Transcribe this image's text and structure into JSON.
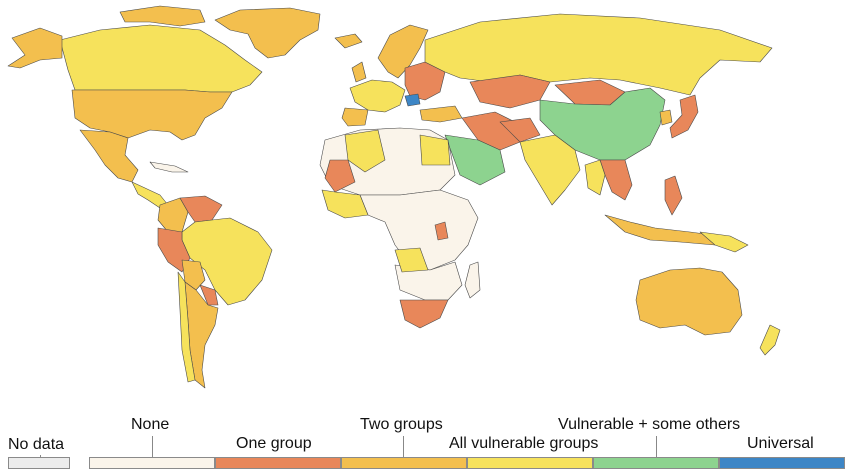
{
  "legend": {
    "no_data": "No data",
    "categories": [
      {
        "label": "None",
        "color": "#faf4ea"
      },
      {
        "label": "One group",
        "color": "#e8875a"
      },
      {
        "label": "Two groups",
        "color": "#f3bf4e"
      },
      {
        "label": "All vulnerable groups",
        "color": "#f6e25c"
      },
      {
        "label": "Vulnerable + some others",
        "color": "#8dd38f"
      },
      {
        "label": "Universal",
        "color": "#3d86c6"
      }
    ],
    "no_data_color": "#ececec"
  },
  "map": {
    "ocean_color": "#ffffff",
    "border_color": "#4a4a4a"
  }
}
